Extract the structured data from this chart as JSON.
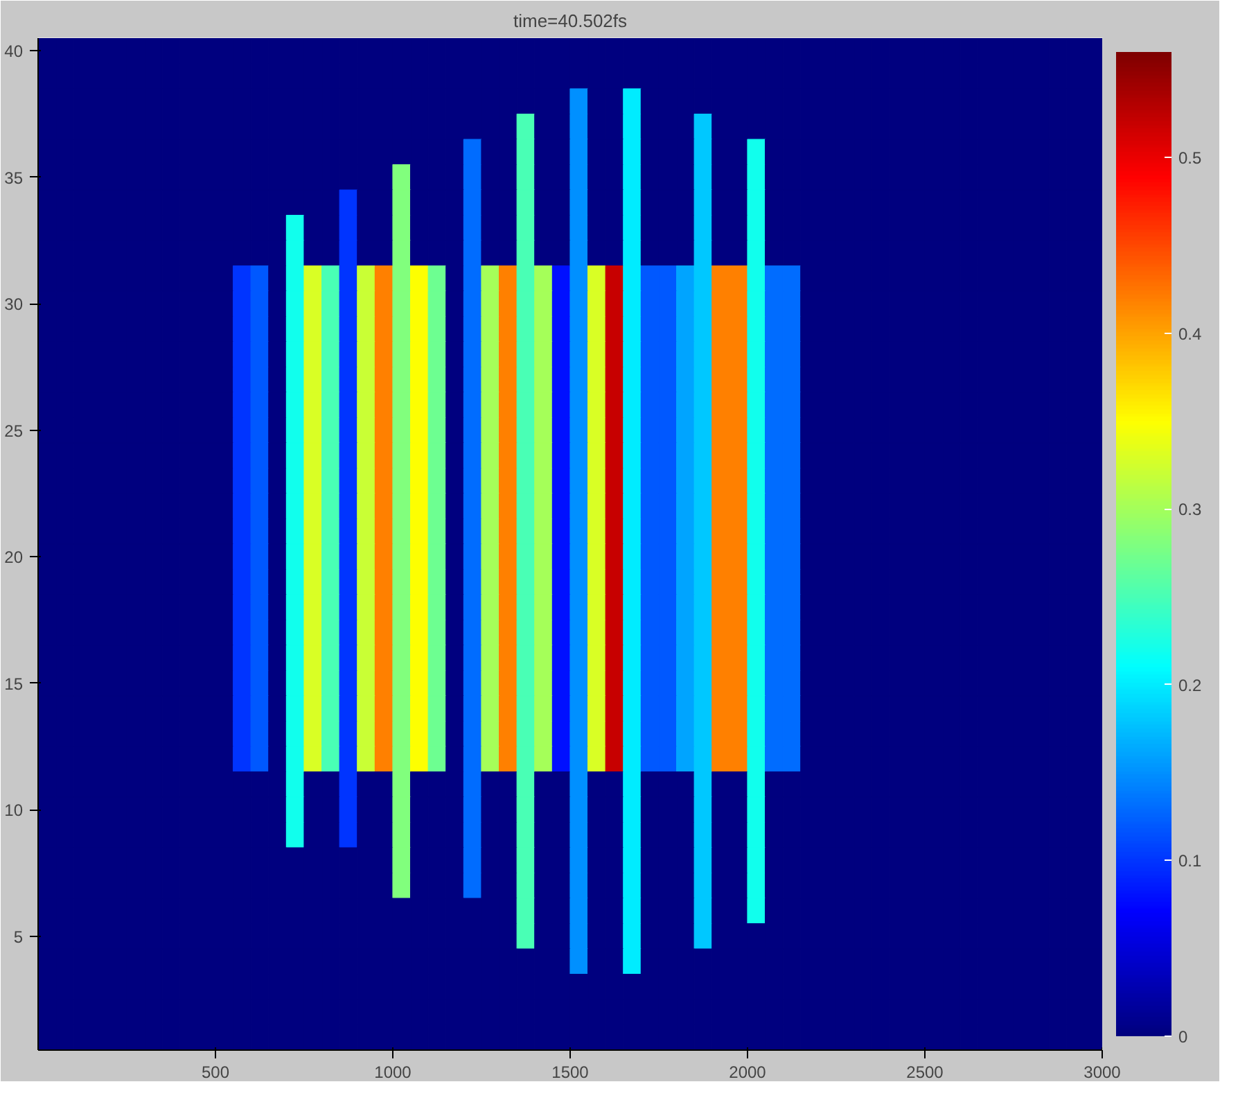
{
  "chart_data": {
    "type": "heatmap",
    "title": "time=40.502fs",
    "x": [
      25,
      75,
      125,
      175,
      225,
      275,
      325,
      375,
      425,
      475,
      525,
      575,
      625,
      675,
      725,
      775,
      825,
      875,
      925,
      975,
      1025,
      1075,
      1125,
      1175,
      1225,
      1275,
      1325,
      1375,
      1425,
      1475,
      1525,
      1575,
      1625,
      1675,
      1725,
      1775,
      1825,
      1875,
      1925,
      1975,
      2025,
      2075,
      2125,
      2175,
      2225,
      2275,
      2325,
      2375,
      2425,
      2475,
      2525,
      2575,
      2625,
      2675,
      2725,
      2775,
      2825,
      2875,
      2925,
      2975
    ],
    "y": [
      40,
      39,
      38,
      37,
      36,
      35,
      34,
      33,
      32,
      31,
      30,
      29,
      28,
      27,
      26,
      25,
      24,
      23,
      22,
      21,
      20,
      19,
      18,
      17,
      16,
      15,
      14,
      13,
      12,
      11,
      10,
      9,
      8,
      7,
      6,
      5,
      4,
      3,
      2,
      1
    ],
    "cells": [
      [
        0,
        0,
        0,
        0,
        0,
        0,
        0,
        0,
        0,
        0,
        0,
        0,
        0,
        0,
        0,
        0,
        0,
        0,
        0,
        0,
        0,
        0,
        0,
        0,
        0,
        0,
        0,
        0,
        0,
        0,
        0,
        0,
        0,
        0,
        0,
        0,
        0,
        0,
        0,
        0,
        0,
        0,
        0,
        0,
        0,
        0,
        0,
        0,
        0,
        0,
        0,
        0,
        0,
        0,
        0,
        0,
        0,
        0,
        0,
        0
      ],
      [
        0,
        0,
        0,
        0,
        0,
        0,
        0,
        0,
        0,
        0,
        0,
        0,
        0,
        0,
        0,
        0,
        0,
        0,
        0,
        0,
        0,
        0,
        0,
        0,
        0,
        0,
        0,
        0,
        0,
        0,
        0,
        0,
        0,
        0,
        0,
        0,
        0,
        0,
        0,
        0,
        0,
        0,
        0,
        0,
        0,
        0,
        0,
        0,
        0,
        0,
        0,
        0,
        0,
        0,
        0,
        0,
        0,
        0,
        0,
        0
      ],
      [
        0,
        0,
        0,
        0,
        0,
        0,
        0,
        0,
        0,
        0,
        0,
        0,
        0,
        0,
        0,
        0,
        0,
        0,
        0,
        0,
        0,
        0,
        0,
        0,
        0,
        0,
        0,
        0,
        0,
        0,
        0.15,
        0,
        0,
        0.2,
        0,
        0,
        0,
        0,
        0,
        0,
        0,
        0,
        0,
        0,
        0,
        0,
        0,
        0,
        0,
        0,
        0,
        0,
        0,
        0,
        0,
        0,
        0,
        0,
        0,
        0
      ],
      [
        0,
        0,
        0,
        0,
        0,
        0,
        0,
        0,
        0,
        0,
        0,
        0,
        0,
        0,
        0,
        0,
        0,
        0,
        0,
        0,
        0,
        0,
        0,
        0,
        0,
        0,
        0,
        0.25,
        0,
        0,
        0.15,
        0,
        0,
        0.2,
        0,
        0,
        0,
        0.18,
        0,
        0,
        0,
        0,
        0,
        0,
        0,
        0,
        0,
        0,
        0,
        0,
        0,
        0,
        0,
        0,
        0,
        0,
        0,
        0,
        0,
        0
      ],
      [
        0,
        0,
        0,
        0,
        0,
        0,
        0,
        0,
        0,
        0,
        0,
        0,
        0,
        0,
        0,
        0,
        0,
        0,
        0,
        0,
        0,
        0,
        0,
        0,
        0.13,
        0,
        0,
        0.25,
        0,
        0,
        0.15,
        0,
        0,
        0.2,
        0,
        0,
        0,
        0.18,
        0,
        0,
        0.22,
        0,
        0,
        0,
        0,
        0,
        0,
        0,
        0,
        0,
        0,
        0,
        0,
        0,
        0,
        0,
        0,
        0,
        0,
        0
      ],
      [
        0,
        0,
        0,
        0,
        0,
        0,
        0,
        0,
        0,
        0,
        0,
        0,
        0,
        0,
        0,
        0,
        0,
        0,
        0,
        0,
        0.28,
        0,
        0,
        0,
        0.13,
        0,
        0,
        0.25,
        0,
        0,
        0.15,
        0,
        0,
        0.2,
        0,
        0,
        0,
        0.18,
        0,
        0,
        0.22,
        0,
        0,
        0,
        0,
        0,
        0,
        0,
        0,
        0,
        0,
        0,
        0,
        0,
        0,
        0,
        0,
        0,
        0,
        0
      ],
      [
        0,
        0,
        0,
        0,
        0,
        0,
        0,
        0,
        0,
        0,
        0,
        0,
        0,
        0,
        0,
        0,
        0,
        0.1,
        0,
        0,
        0.28,
        0,
        0,
        0,
        0.13,
        0,
        0,
        0.25,
        0,
        0,
        0.15,
        0,
        0,
        0.2,
        0,
        0,
        0,
        0.18,
        0,
        0,
        0.22,
        0,
        0,
        0,
        0,
        0,
        0,
        0,
        0,
        0,
        0,
        0,
        0,
        0,
        0,
        0,
        0,
        0,
        0,
        0
      ],
      [
        0,
        0,
        0,
        0,
        0,
        0,
        0,
        0,
        0,
        0,
        0,
        0,
        0,
        0,
        0.22,
        0,
        0,
        0.1,
        0,
        0,
        0.28,
        0,
        0,
        0,
        0.13,
        0,
        0,
        0.25,
        0,
        0,
        0.15,
        0,
        0,
        0.2,
        0,
        0,
        0,
        0.18,
        0,
        0,
        0.22,
        0,
        0,
        0,
        0,
        0,
        0,
        0,
        0,
        0,
        0,
        0,
        0,
        0,
        0,
        0,
        0,
        0,
        0,
        0
      ],
      [
        0,
        0,
        0,
        0,
        0,
        0,
        0,
        0,
        0,
        0,
        0,
        0,
        0,
        0,
        0.22,
        0,
        0,
        0.1,
        0,
        0,
        0.28,
        0,
        0,
        0,
        0.13,
        0,
        0,
        0.25,
        0,
        0,
        0.15,
        0,
        0,
        0.2,
        0,
        0,
        0,
        0.18,
        0,
        0,
        0.22,
        0,
        0,
        0,
        0,
        0,
        0,
        0,
        0,
        0,
        0,
        0,
        0,
        0,
        0,
        0,
        0,
        0,
        0,
        0
      ],
      [
        0,
        0,
        0,
        0,
        0,
        0,
        0,
        0,
        0,
        0,
        0,
        0.1,
        0.12,
        0,
        0.22,
        0.33,
        0.25,
        0.1,
        0.32,
        0.42,
        0.28,
        0.35,
        0.27,
        0,
        0.13,
        0.3,
        0.42,
        0.25,
        0.3,
        0.08,
        0.15,
        0.33,
        0.52,
        0.2,
        0.12,
        0.12,
        0.16,
        0.18,
        0.42,
        0.42,
        0.22,
        0.13,
        0.13,
        0,
        0,
        0,
        0,
        0,
        0,
        0,
        0,
        0,
        0,
        0,
        0,
        0,
        0,
        0,
        0,
        0
      ],
      [
        0,
        0,
        0,
        0,
        0,
        0,
        0,
        0,
        0,
        0,
        0,
        0.1,
        0.12,
        0,
        0.22,
        0.33,
        0.25,
        0.1,
        0.32,
        0.42,
        0.28,
        0.35,
        0.27,
        0,
        0.13,
        0.3,
        0.42,
        0.25,
        0.3,
        0.08,
        0.15,
        0.33,
        0.52,
        0.2,
        0.12,
        0.12,
        0.16,
        0.18,
        0.42,
        0.42,
        0.22,
        0.13,
        0.13,
        0,
        0,
        0,
        0,
        0,
        0,
        0,
        0,
        0,
        0,
        0,
        0,
        0,
        0,
        0,
        0,
        0
      ],
      [
        0,
        0,
        0,
        0,
        0,
        0,
        0,
        0,
        0,
        0,
        0,
        0.1,
        0.12,
        0,
        0.22,
        0.33,
        0.25,
        0.1,
        0.32,
        0.42,
        0.28,
        0.35,
        0.27,
        0,
        0.13,
        0.3,
        0.42,
        0.25,
        0.3,
        0.08,
        0.15,
        0.33,
        0.52,
        0.2,
        0.12,
        0.12,
        0.16,
        0.18,
        0.42,
        0.42,
        0.22,
        0.13,
        0.13,
        0,
        0,
        0,
        0,
        0,
        0,
        0,
        0,
        0,
        0,
        0,
        0,
        0,
        0,
        0,
        0,
        0
      ],
      [
        0,
        0,
        0,
        0,
        0,
        0,
        0,
        0,
        0,
        0,
        0,
        0.1,
        0.12,
        0,
        0.22,
        0.33,
        0.25,
        0.1,
        0.32,
        0.42,
        0.28,
        0.35,
        0.27,
        0,
        0.13,
        0.3,
        0.42,
        0.25,
        0.3,
        0.08,
        0.15,
        0.33,
        0.52,
        0.2,
        0.12,
        0.12,
        0.16,
        0.18,
        0.42,
        0.42,
        0.22,
        0.13,
        0.13,
        0,
        0,
        0,
        0,
        0,
        0,
        0,
        0,
        0,
        0,
        0,
        0,
        0,
        0,
        0,
        0,
        0
      ],
      [
        0,
        0,
        0,
        0,
        0,
        0,
        0,
        0,
        0,
        0,
        0,
        0.1,
        0.12,
        0,
        0.22,
        0.33,
        0.25,
        0.1,
        0.32,
        0.42,
        0.28,
        0.35,
        0.27,
        0,
        0.13,
        0.3,
        0.42,
        0.25,
        0.3,
        0.08,
        0.15,
        0.33,
        0.52,
        0.2,
        0.12,
        0.12,
        0.16,
        0.18,
        0.42,
        0.42,
        0.22,
        0.13,
        0.13,
        0,
        0,
        0,
        0,
        0,
        0,
        0,
        0,
        0,
        0,
        0,
        0,
        0,
        0,
        0,
        0,
        0
      ],
      [
        0,
        0,
        0,
        0,
        0,
        0,
        0,
        0,
        0,
        0,
        0,
        0.1,
        0.12,
        0,
        0.22,
        0.33,
        0.25,
        0.1,
        0.32,
        0.42,
        0.28,
        0.35,
        0.27,
        0,
        0.13,
        0.3,
        0.42,
        0.25,
        0.3,
        0.08,
        0.15,
        0.33,
        0.52,
        0.2,
        0.12,
        0.12,
        0.16,
        0.18,
        0.42,
        0.42,
        0.22,
        0.13,
        0.13,
        0,
        0,
        0,
        0,
        0,
        0,
        0,
        0,
        0,
        0,
        0,
        0,
        0,
        0,
        0,
        0,
        0
      ],
      [
        0,
        0,
        0,
        0,
        0,
        0,
        0,
        0,
        0,
        0,
        0,
        0.1,
        0.12,
        0,
        0.22,
        0.33,
        0.25,
        0.1,
        0.32,
        0.42,
        0.28,
        0.35,
        0.27,
        0,
        0.13,
        0.3,
        0.42,
        0.25,
        0.3,
        0.08,
        0.15,
        0.33,
        0.52,
        0.2,
        0.12,
        0.12,
        0.16,
        0.18,
        0.42,
        0.42,
        0.22,
        0.13,
        0.13,
        0,
        0,
        0,
        0,
        0,
        0,
        0,
        0,
        0,
        0,
        0,
        0,
        0,
        0,
        0,
        0,
        0
      ],
      [
        0,
        0,
        0,
        0,
        0,
        0,
        0,
        0,
        0,
        0,
        0,
        0.1,
        0.12,
        0,
        0.22,
        0.33,
        0.25,
        0.1,
        0.32,
        0.42,
        0.28,
        0.35,
        0.27,
        0,
        0.13,
        0.3,
        0.42,
        0.25,
        0.3,
        0.08,
        0.15,
        0.33,
        0.52,
        0.2,
        0.12,
        0.12,
        0.16,
        0.18,
        0.42,
        0.42,
        0.22,
        0.13,
        0.13,
        0,
        0,
        0,
        0,
        0,
        0,
        0,
        0,
        0,
        0,
        0,
        0,
        0,
        0,
        0,
        0,
        0
      ],
      [
        0,
        0,
        0,
        0,
        0,
        0,
        0,
        0,
        0,
        0,
        0,
        0.1,
        0.12,
        0,
        0.22,
        0.33,
        0.25,
        0.1,
        0.32,
        0.42,
        0.28,
        0.35,
        0.27,
        0,
        0.13,
        0.3,
        0.42,
        0.25,
        0.3,
        0.08,
        0.15,
        0.33,
        0.52,
        0.2,
        0.12,
        0.12,
        0.16,
        0.18,
        0.42,
        0.42,
        0.22,
        0.13,
        0.13,
        0,
        0,
        0,
        0,
        0,
        0,
        0,
        0,
        0,
        0,
        0,
        0,
        0,
        0,
        0,
        0,
        0
      ],
      [
        0,
        0,
        0,
        0,
        0,
        0,
        0,
        0,
        0,
        0,
        0,
        0.1,
        0.12,
        0,
        0.22,
        0.33,
        0.25,
        0.1,
        0.32,
        0.42,
        0.28,
        0.35,
        0.27,
        0,
        0.13,
        0.3,
        0.42,
        0.25,
        0.3,
        0.08,
        0.15,
        0.33,
        0.52,
        0.2,
        0.12,
        0.12,
        0.16,
        0.18,
        0.42,
        0.42,
        0.22,
        0.13,
        0.13,
        0,
        0,
        0,
        0,
        0,
        0,
        0,
        0,
        0,
        0,
        0,
        0,
        0,
        0,
        0,
        0,
        0
      ],
      [
        0,
        0,
        0,
        0,
        0,
        0,
        0,
        0,
        0,
        0,
        0,
        0.1,
        0.12,
        0,
        0.22,
        0.33,
        0.25,
        0.1,
        0.32,
        0.42,
        0.28,
        0.35,
        0.27,
        0,
        0.13,
        0.3,
        0.42,
        0.25,
        0.3,
        0.08,
        0.15,
        0.33,
        0.52,
        0.2,
        0.12,
        0.12,
        0.16,
        0.18,
        0.42,
        0.42,
        0.22,
        0.13,
        0.13,
        0,
        0,
        0,
        0,
        0,
        0,
        0,
        0,
        0,
        0,
        0,
        0,
        0,
        0,
        0,
        0,
        0
      ],
      [
        0,
        0,
        0,
        0,
        0,
        0,
        0,
        0,
        0,
        0,
        0,
        0.1,
        0.12,
        0,
        0.22,
        0.33,
        0.25,
        0.1,
        0.32,
        0.42,
        0.28,
        0.35,
        0.27,
        0,
        0.13,
        0.3,
        0.42,
        0.25,
        0.3,
        0.08,
        0.15,
        0.33,
        0.52,
        0.2,
        0.12,
        0.12,
        0.16,
        0.18,
        0.42,
        0.42,
        0.22,
        0.13,
        0.13,
        0,
        0,
        0,
        0,
        0,
        0,
        0,
        0,
        0,
        0,
        0,
        0,
        0,
        0,
        0,
        0,
        0
      ],
      [
        0,
        0,
        0,
        0,
        0,
        0,
        0,
        0,
        0,
        0,
        0,
        0.1,
        0.12,
        0,
        0.22,
        0.33,
        0.25,
        0.1,
        0.32,
        0.42,
        0.28,
        0.35,
        0.27,
        0,
        0.13,
        0.3,
        0.42,
        0.25,
        0.3,
        0.08,
        0.15,
        0.33,
        0.52,
        0.2,
        0.12,
        0.12,
        0.16,
        0.18,
        0.42,
        0.42,
        0.22,
        0.13,
        0.13,
        0,
        0,
        0,
        0,
        0,
        0,
        0,
        0,
        0,
        0,
        0,
        0,
        0,
        0,
        0,
        0,
        0
      ],
      [
        0,
        0,
        0,
        0,
        0,
        0,
        0,
        0,
        0,
        0,
        0,
        0.1,
        0.12,
        0,
        0.22,
        0.33,
        0.25,
        0.1,
        0.32,
        0.42,
        0.28,
        0.35,
        0.27,
        0,
        0.13,
        0.3,
        0.42,
        0.25,
        0.3,
        0.08,
        0.15,
        0.33,
        0.52,
        0.2,
        0.12,
        0.12,
        0.16,
        0.18,
        0.42,
        0.42,
        0.22,
        0.13,
        0.13,
        0,
        0,
        0,
        0,
        0,
        0,
        0,
        0,
        0,
        0,
        0,
        0,
        0,
        0,
        0,
        0,
        0
      ],
      [
        0,
        0,
        0,
        0,
        0,
        0,
        0,
        0,
        0,
        0,
        0,
        0.1,
        0.12,
        0,
        0.22,
        0.33,
        0.25,
        0.1,
        0.32,
        0.42,
        0.28,
        0.35,
        0.27,
        0,
        0.13,
        0.3,
        0.42,
        0.25,
        0.3,
        0.08,
        0.15,
        0.33,
        0.52,
        0.2,
        0.12,
        0.12,
        0.16,
        0.18,
        0.42,
        0.42,
        0.22,
        0.13,
        0.13,
        0,
        0,
        0,
        0,
        0,
        0,
        0,
        0,
        0,
        0,
        0,
        0,
        0,
        0,
        0,
        0,
        0
      ],
      [
        0,
        0,
        0,
        0,
        0,
        0,
        0,
        0,
        0,
        0,
        0,
        0.1,
        0.12,
        0,
        0.22,
        0.33,
        0.25,
        0.1,
        0.32,
        0.42,
        0.28,
        0.35,
        0.27,
        0,
        0.13,
        0.3,
        0.42,
        0.25,
        0.3,
        0.08,
        0.15,
        0.33,
        0.52,
        0.2,
        0.12,
        0.12,
        0.16,
        0.18,
        0.42,
        0.42,
        0.22,
        0.13,
        0.13,
        0,
        0,
        0,
        0,
        0,
        0,
        0,
        0,
        0,
        0,
        0,
        0,
        0,
        0,
        0,
        0,
        0
      ],
      [
        0,
        0,
        0,
        0,
        0,
        0,
        0,
        0,
        0,
        0,
        0,
        0.1,
        0.12,
        0,
        0.22,
        0.33,
        0.25,
        0.1,
        0.32,
        0.42,
        0.28,
        0.35,
        0.27,
        0,
        0.13,
        0.3,
        0.42,
        0.25,
        0.3,
        0.08,
        0.15,
        0.33,
        0.52,
        0.2,
        0.12,
        0.12,
        0.16,
        0.18,
        0.42,
        0.42,
        0.22,
        0.13,
        0.13,
        0,
        0,
        0,
        0,
        0,
        0,
        0,
        0,
        0,
        0,
        0,
        0,
        0,
        0,
        0,
        0,
        0
      ],
      [
        0,
        0,
        0,
        0,
        0,
        0,
        0,
        0,
        0,
        0,
        0,
        0.1,
        0.12,
        0,
        0.22,
        0.33,
        0.25,
        0.1,
        0.32,
        0.42,
        0.28,
        0.35,
        0.27,
        0,
        0.13,
        0.3,
        0.42,
        0.25,
        0.3,
        0.08,
        0.15,
        0.33,
        0.52,
        0.2,
        0.12,
        0.12,
        0.16,
        0.18,
        0.42,
        0.42,
        0.22,
        0.13,
        0.13,
        0,
        0,
        0,
        0,
        0,
        0,
        0,
        0,
        0,
        0,
        0,
        0,
        0,
        0,
        0,
        0,
        0
      ],
      [
        0,
        0,
        0,
        0,
        0,
        0,
        0,
        0,
        0,
        0,
        0,
        0.1,
        0.12,
        0,
        0.22,
        0.33,
        0.25,
        0.1,
        0.32,
        0.42,
        0.28,
        0.35,
        0.27,
        0,
        0.13,
        0.3,
        0.42,
        0.25,
        0.3,
        0.08,
        0.15,
        0.33,
        0.52,
        0.2,
        0.12,
        0.12,
        0.16,
        0.18,
        0.42,
        0.42,
        0.22,
        0.13,
        0.13,
        0,
        0,
        0,
        0,
        0,
        0,
        0,
        0,
        0,
        0,
        0,
        0,
        0,
        0,
        0,
        0,
        0
      ],
      [
        0,
        0,
        0,
        0,
        0,
        0,
        0,
        0,
        0,
        0,
        0,
        0.1,
        0.12,
        0,
        0.22,
        0.33,
        0.25,
        0.1,
        0.32,
        0.42,
        0.28,
        0.35,
        0.27,
        0,
        0.13,
        0.3,
        0.42,
        0.25,
        0.3,
        0.08,
        0.15,
        0.33,
        0.52,
        0.2,
        0.12,
        0.12,
        0.16,
        0.18,
        0.42,
        0.42,
        0.22,
        0.13,
        0.13,
        0,
        0,
        0,
        0,
        0,
        0,
        0,
        0,
        0,
        0,
        0,
        0,
        0,
        0,
        0,
        0,
        0
      ],
      [
        0,
        0,
        0,
        0,
        0,
        0,
        0,
        0,
        0,
        0,
        0,
        0,
        0,
        0,
        0.22,
        0,
        0,
        0.1,
        0,
        0,
        0.28,
        0,
        0,
        0,
        0.13,
        0,
        0,
        0.25,
        0,
        0,
        0.15,
        0,
        0,
        0.2,
        0,
        0,
        0,
        0.18,
        0,
        0,
        0.22,
        0,
        0,
        0,
        0,
        0,
        0,
        0,
        0,
        0,
        0,
        0,
        0,
        0,
        0,
        0,
        0,
        0,
        0,
        0
      ],
      [
        0,
        0,
        0,
        0,
        0,
        0,
        0,
        0,
        0,
        0,
        0,
        0,
        0,
        0,
        0.22,
        0,
        0,
        0.1,
        0,
        0,
        0.28,
        0,
        0,
        0,
        0.13,
        0,
        0,
        0.25,
        0,
        0,
        0.15,
        0,
        0,
        0.2,
        0,
        0,
        0,
        0.18,
        0,
        0,
        0.22,
        0,
        0,
        0,
        0,
        0,
        0,
        0,
        0,
        0,
        0,
        0,
        0,
        0,
        0,
        0,
        0,
        0,
        0,
        0
      ],
      [
        0,
        0,
        0,
        0,
        0,
        0,
        0,
        0,
        0,
        0,
        0,
        0,
        0,
        0,
        0.22,
        0,
        0,
        0.1,
        0,
        0,
        0.28,
        0,
        0,
        0,
        0.13,
        0,
        0,
        0.25,
        0,
        0,
        0.15,
        0,
        0,
        0.2,
        0,
        0,
        0,
        0.18,
        0,
        0,
        0.22,
        0,
        0,
        0,
        0,
        0,
        0,
        0,
        0,
        0,
        0,
        0,
        0,
        0,
        0,
        0,
        0,
        0,
        0,
        0
      ],
      [
        0,
        0,
        0,
        0,
        0,
        0,
        0,
        0,
        0,
        0,
        0,
        0,
        0,
        0,
        0,
        0,
        0,
        0,
        0,
        0,
        0.28,
        0,
        0,
        0,
        0.13,
        0,
        0,
        0.25,
        0,
        0,
        0.15,
        0,
        0,
        0.2,
        0,
        0,
        0,
        0.18,
        0,
        0,
        0.22,
        0,
        0,
        0,
        0,
        0,
        0,
        0,
        0,
        0,
        0,
        0,
        0,
        0,
        0,
        0,
        0,
        0,
        0,
        0
      ],
      [
        0,
        0,
        0,
        0,
        0,
        0,
        0,
        0,
        0,
        0,
        0,
        0,
        0,
        0,
        0,
        0,
        0,
        0,
        0,
        0,
        0.28,
        0,
        0,
        0,
        0.13,
        0,
        0,
        0.25,
        0,
        0,
        0.15,
        0,
        0,
        0.2,
        0,
        0,
        0,
        0.18,
        0,
        0,
        0.22,
        0,
        0,
        0,
        0,
        0,
        0,
        0,
        0,
        0,
        0,
        0,
        0,
        0,
        0,
        0,
        0,
        0,
        0,
        0
      ],
      [
        0,
        0,
        0,
        0,
        0,
        0,
        0,
        0,
        0,
        0,
        0,
        0,
        0,
        0,
        0,
        0,
        0,
        0,
        0,
        0,
        0,
        0,
        0,
        0,
        0,
        0,
        0,
        0.25,
        0,
        0,
        0.15,
        0,
        0,
        0.2,
        0,
        0,
        0,
        0.18,
        0,
        0,
        0.22,
        0,
        0,
        0,
        0,
        0,
        0,
        0,
        0,
        0,
        0,
        0,
        0,
        0,
        0,
        0,
        0,
        0,
        0,
        0
      ],
      [
        0,
        0,
        0,
        0,
        0,
        0,
        0,
        0,
        0,
        0,
        0,
        0,
        0,
        0,
        0,
        0,
        0,
        0,
        0,
        0,
        0,
        0,
        0,
        0,
        0,
        0,
        0,
        0.25,
        0,
        0,
        0.15,
        0,
        0,
        0.2,
        0,
        0,
        0,
        0.18,
        0,
        0,
        0,
        0,
        0,
        0,
        0,
        0,
        0,
        0,
        0,
        0,
        0,
        0,
        0,
        0,
        0,
        0,
        0,
        0,
        0,
        0
      ],
      [
        0,
        0,
        0,
        0,
        0,
        0,
        0,
        0,
        0,
        0,
        0,
        0,
        0,
        0,
        0,
        0,
        0,
        0,
        0,
        0,
        0,
        0,
        0,
        0,
        0,
        0,
        0,
        0,
        0,
        0,
        0.15,
        0,
        0,
        0.2,
        0,
        0,
        0,
        0,
        0,
        0,
        0,
        0,
        0,
        0,
        0,
        0,
        0,
        0,
        0,
        0,
        0,
        0,
        0,
        0,
        0,
        0,
        0,
        0,
        0,
        0
      ],
      [
        0,
        0,
        0,
        0,
        0,
        0,
        0,
        0,
        0,
        0,
        0,
        0,
        0,
        0,
        0,
        0,
        0,
        0,
        0,
        0,
        0,
        0,
        0,
        0,
        0,
        0,
        0,
        0,
        0,
        0,
        0,
        0,
        0,
        0,
        0,
        0,
        0,
        0,
        0,
        0,
        0,
        0,
        0,
        0,
        0,
        0,
        0,
        0,
        0,
        0,
        0,
        0,
        0,
        0,
        0,
        0,
        0,
        0,
        0,
        0
      ],
      [
        0,
        0,
        0,
        0,
        0,
        0,
        0,
        0,
        0,
        0,
        0,
        0,
        0,
        0,
        0,
        0,
        0,
        0,
        0,
        0,
        0,
        0,
        0,
        0,
        0,
        0,
        0,
        0,
        0,
        0,
        0,
        0,
        0,
        0,
        0,
        0,
        0,
        0,
        0,
        0,
        0,
        0,
        0,
        0,
        0,
        0,
        0,
        0,
        0,
        0,
        0,
        0,
        0,
        0,
        0,
        0,
        0,
        0,
        0,
        0
      ],
      [
        0,
        0,
        0,
        0,
        0,
        0,
        0,
        0,
        0,
        0,
        0,
        0,
        0,
        0,
        0,
        0,
        0,
        0,
        0,
        0,
        0,
        0,
        0,
        0,
        0,
        0,
        0,
        0,
        0,
        0,
        0,
        0,
        0,
        0,
        0,
        0,
        0,
        0,
        0,
        0,
        0,
        0,
        0,
        0,
        0,
        0,
        0,
        0,
        0,
        0,
        0,
        0,
        0,
        0,
        0,
        0,
        0,
        0,
        0,
        0
      ]
    ],
    "xlim": [
      0,
      3000
    ],
    "ylim": [
      0.5,
      40.5
    ],
    "xticks": [
      500,
      1000,
      1500,
      2000,
      2500,
      3000
    ],
    "yticks": [
      5,
      10,
      15,
      20,
      25,
      30,
      35,
      40
    ],
    "clim": [
      0,
      0.56
    ],
    "cticks": [
      0,
      0.1,
      0.2,
      0.3,
      0.4,
      0.5
    ]
  }
}
